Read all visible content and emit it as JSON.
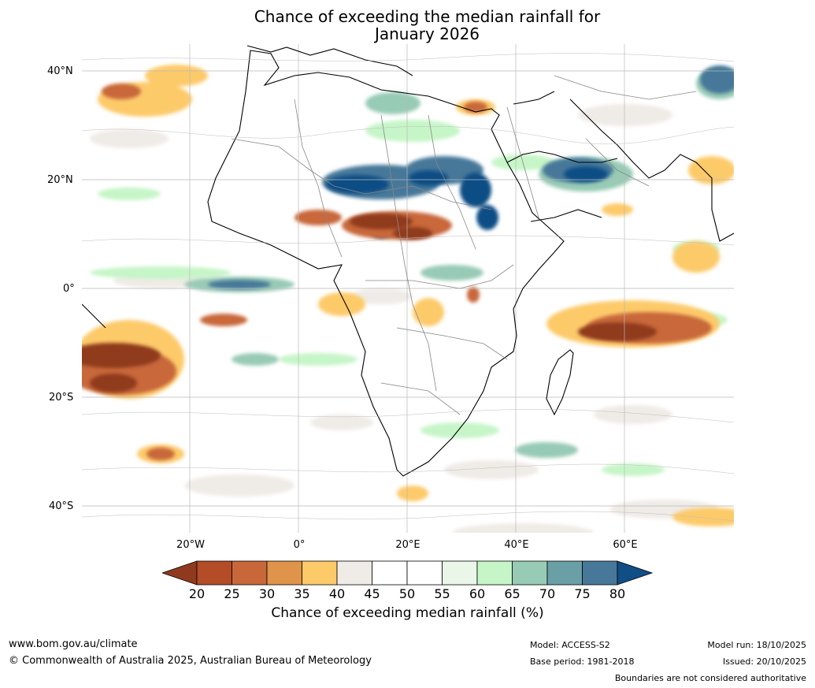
{
  "title": {
    "line1": "Chance of exceeding the median rainfall for",
    "line2": "January 2026"
  },
  "axes": {
    "lat_labels": [
      "40°N",
      "20°N",
      "0°",
      "20°S",
      "40°S"
    ],
    "lon_labels": [
      "20°W",
      "0°",
      "20°E",
      "40°E",
      "60°E"
    ]
  },
  "colorbar": {
    "ticks": [
      "20",
      "25",
      "30",
      "35",
      "40",
      "45",
      "50",
      "55",
      "60",
      "65",
      "70",
      "75",
      "80"
    ],
    "colors": [
      "#8f3a1e",
      "#b34c27",
      "#c8673a",
      "#e0934a",
      "#fdca6a",
      "#efebe6",
      "#ffffff",
      "#ffffff",
      "#eaf7e8",
      "#c6f5c8",
      "#98cbb5",
      "#6a9fa6",
      "#47789a",
      "#114e85"
    ],
    "label": "Chance of exceeding median rainfall (%)"
  },
  "footer": {
    "website": "www.bom.gov.au/climate",
    "copyright": "© Commonwealth of Australia 2025, Australian Bureau of Meteorology",
    "model": "Model: ACCESS-S2",
    "base_period": "Base period: 1981-2018",
    "model_run": "Model run: 18/10/2025",
    "issued": "Issued: 20/10/2025",
    "disclaimer": "Boundaries are not considered authoritative"
  }
}
